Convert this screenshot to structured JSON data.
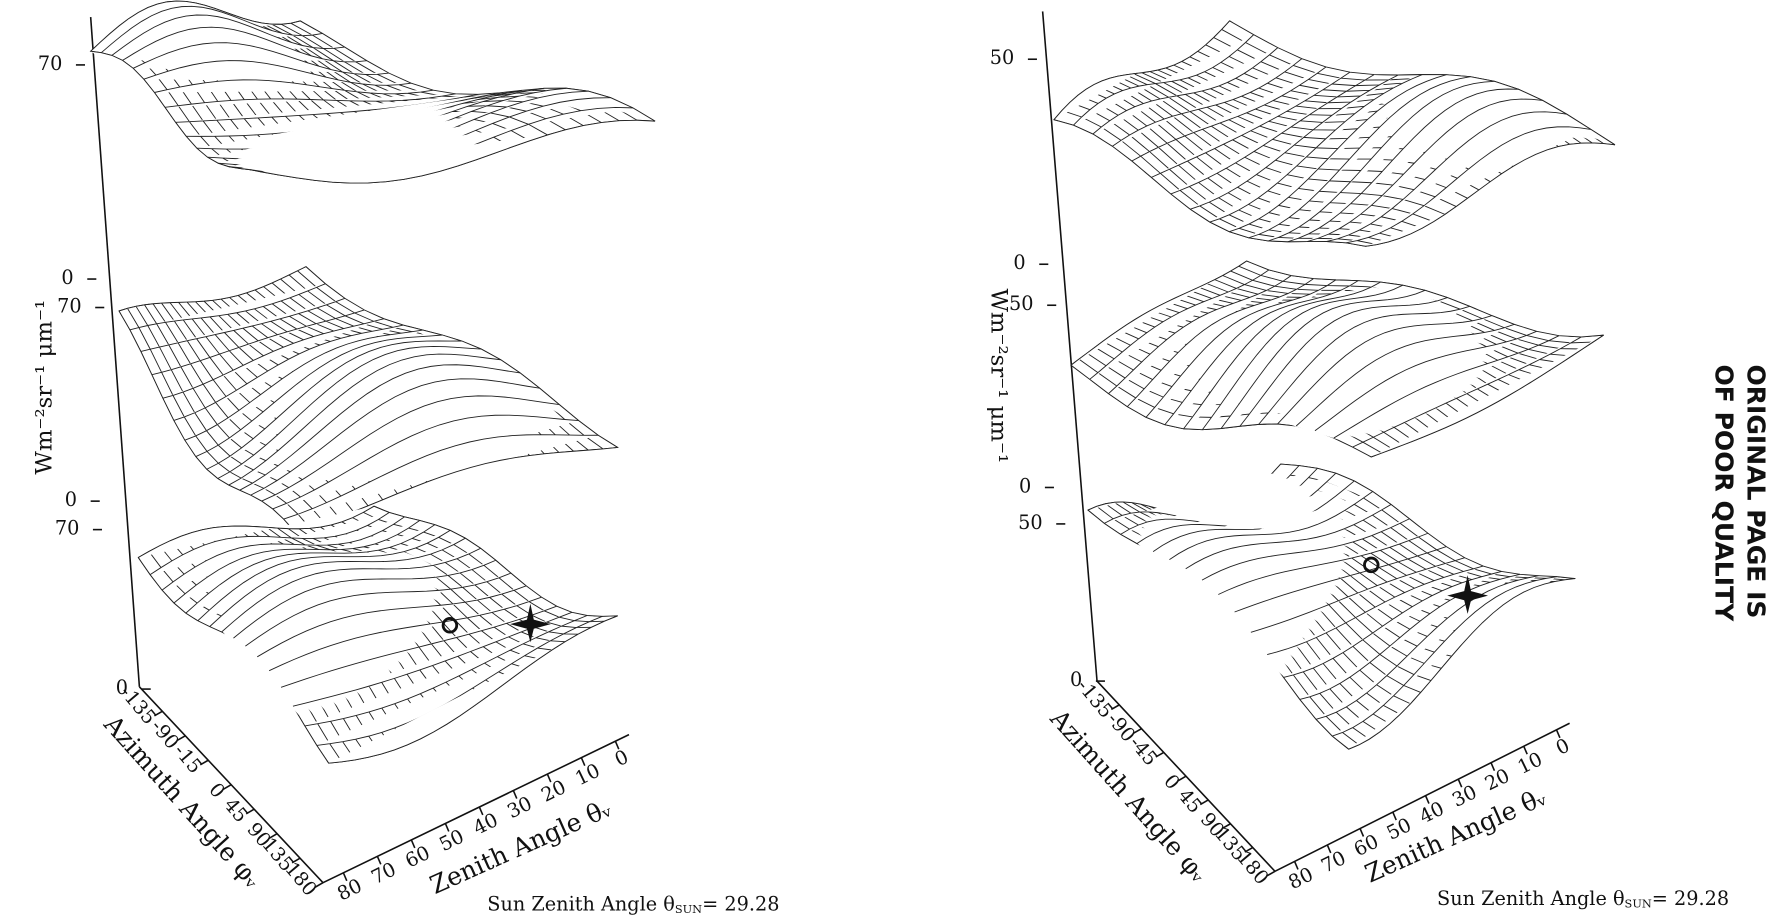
{
  "panels": [
    {
      "y_axis_label": "Wm⁻²sr⁻¹ μm⁻¹",
      "level_ticks": [
        "70",
        "0",
        "70",
        "0",
        "70",
        "0"
      ],
      "azimuth_ticks": [
        "-135",
        "-90",
        "-15",
        "0",
        "45",
        "90",
        "135",
        "180"
      ],
      "azimuth_label": "Azimuth Angle φᵥ",
      "zenith_ticks": [
        "80",
        "70",
        "60",
        "50",
        "40",
        "30",
        "20",
        "10",
        "0"
      ],
      "zenith_label": "Zenith Angle θᵥ",
      "sun_label": "Sun Zenith Angle θ",
      "sun_subscript": "SUN",
      "sun_value": "= 29.28"
    },
    {
      "y_axis_label": "Wm⁻²sr⁻¹ μm⁻¹",
      "level_ticks": [
        "50",
        "0",
        "50",
        "0",
        "50",
        "0"
      ],
      "azimuth_ticks": [
        "-135",
        "-90",
        "-45",
        "0",
        "45",
        "90",
        "135",
        "180"
      ],
      "azimuth_label": "Azimuth Angle φᵥ",
      "zenith_ticks": [
        "80",
        "70",
        "60",
        "50",
        "40",
        "30",
        "20",
        "10",
        "0"
      ],
      "zenith_label": "Zenith Angle θᵥ",
      "sun_label": "Sun Zenith Angle θ",
      "sun_subscript": "SUN",
      "sun_value": "= 29.28"
    }
  ],
  "stamp": [
    "ORIGINAL PAGE IS",
    "OF POOR QUALITY"
  ]
}
